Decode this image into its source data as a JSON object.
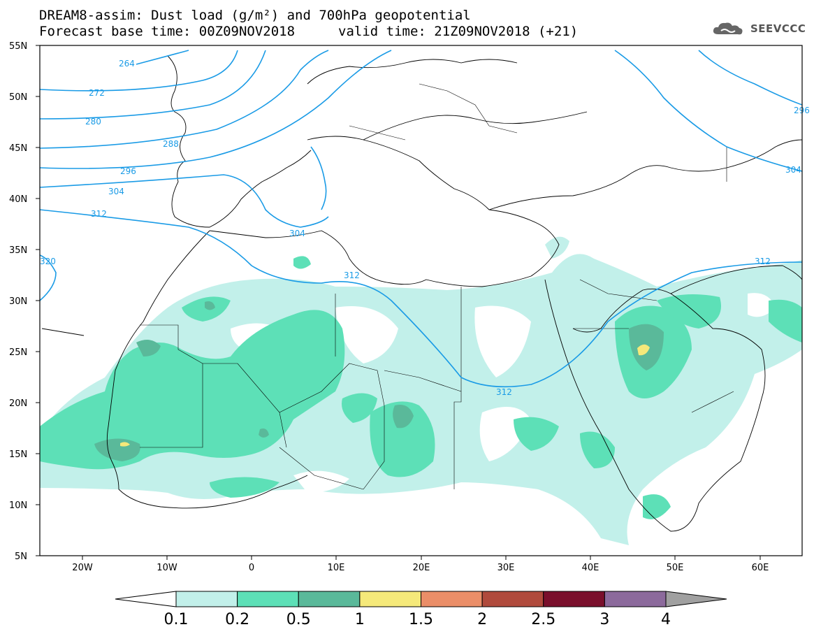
{
  "header": {
    "title_line1": "DREAM8-assim: Dust load (g/m²) and 700hPa geopotential",
    "forecast_base": "Forecast base time: 00Z09NOV2018",
    "valid_time": "valid time: 21Z09NOV2018 (+21)"
  },
  "logo": {
    "text": "SEEVCCC",
    "icon": "cloud-icon"
  },
  "map": {
    "lat_labels": [
      "55N",
      "50N",
      "45N",
      "40N",
      "35N",
      "30N",
      "25N",
      "20N",
      "15N",
      "10N",
      "5N"
    ],
    "lon_labels": [
      "20W",
      "10W",
      "0",
      "10E",
      "20E",
      "30E",
      "40E",
      "50E",
      "60E"
    ],
    "lat_range": [
      5,
      55
    ],
    "lon_range": [
      -25,
      65
    ],
    "geopotential_contour_labels": [
      "264",
      "272",
      "280",
      "288",
      "296",
      "304",
      "312",
      "304",
      "312",
      "320",
      "312",
      "312",
      "304",
      "296"
    ]
  },
  "colorbar": {
    "labels": [
      "0.1",
      "0.2",
      "0.5",
      "1",
      "1.5",
      "2",
      "2.5",
      "3",
      "4"
    ],
    "colors": [
      "#ffffff",
      "#c2f0ea",
      "#5de0b7",
      "#5ab99a",
      "#f5e97a",
      "#eb8e68",
      "#b04a3c",
      "#7a0f2c",
      "#8c6a9c",
      "#a0a0a0"
    ]
  },
  "colors": {
    "dust_0_1": "#c2f0ea",
    "dust_0_2": "#5de0b7",
    "dust_0_5": "#5ab99a",
    "dust_1": "#f5e97a",
    "contour_line": "#1a9be6",
    "coastline": "#000000"
  }
}
